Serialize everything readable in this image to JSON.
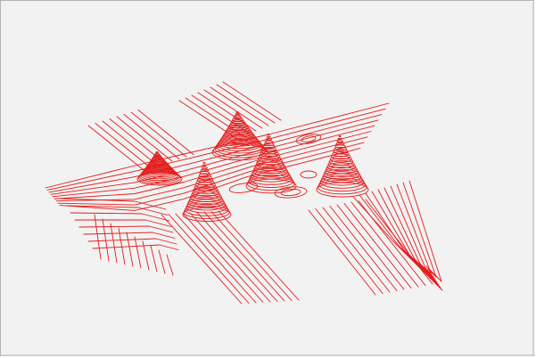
{
  "figure": {
    "type": "3d-contour-stack",
    "line_color": "#e41b1b",
    "background_color": "#f2f2f2",
    "peak_count": 5
  }
}
